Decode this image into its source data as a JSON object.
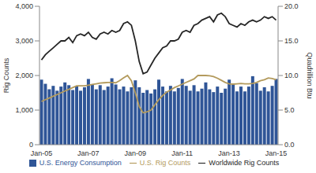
{
  "chart_data": {
    "type": "combo",
    "categories": [
      "Jan-05",
      null,
      null,
      null,
      null,
      null,
      null,
      null,
      null,
      null,
      null,
      null,
      "Jan-07",
      null,
      null,
      null,
      null,
      null,
      null,
      null,
      null,
      null,
      null,
      null,
      "Jan-09",
      null,
      null,
      null,
      null,
      null,
      null,
      null,
      null,
      null,
      null,
      null,
      "Jan-11",
      null,
      null,
      null,
      null,
      null,
      null,
      null,
      null,
      null,
      null,
      null,
      "Jan-13",
      null,
      null,
      null,
      null,
      null,
      null,
      null,
      null,
      null,
      null,
      null,
      "Jan-15"
    ],
    "y_label": "Rig Counts",
    "y2_label": "Quadrillion Btu",
    "ylim": [
      0,
      4000
    ],
    "yticks": [
      0,
      {
        "value": 1000,
        "label": "1,000"
      },
      {
        "value": 2000,
        "label": "2,000"
      },
      {
        "value": 3000,
        "label": "3,000"
      },
      {
        "value": 4000,
        "label": "4,000"
      }
    ],
    "y2lim": [
      0,
      20
    ],
    "y2ticks": [
      {
        "value": 0,
        "label": "0.0"
      },
      {
        "value": 5,
        "label": "5.0"
      },
      {
        "value": 10,
        "label": "10.0"
      },
      {
        "value": 15,
        "label": "15.0"
      },
      {
        "value": 20,
        "label": "20.0"
      }
    ],
    "grid": false,
    "legend": "bottom",
    "series": [
      {
        "name": "U.S. Energy Consumption",
        "type": "bar",
        "axis": "y2",
        "color": "#2f5597",
        "values": [
          9.4,
          8.8,
          8.0,
          8.5,
          7.8,
          8.4,
          9.0,
          8.6,
          7.9,
          8.5,
          7.8,
          8.3,
          9.5,
          8.7,
          8.0,
          8.6,
          7.9,
          8.4,
          9.6,
          8.7,
          8.0,
          8.4,
          7.7,
          8.3,
          9.3,
          8.3,
          7.5,
          7.9,
          7.4,
          8.0,
          9.4,
          8.4,
          7.7,
          8.5,
          7.7,
          8.2,
          9.5,
          8.5,
          7.8,
          8.6,
          7.7,
          8.1,
          9.0,
          8.0,
          7.6,
          8.4,
          7.5,
          8.1,
          9.4,
          8.7,
          7.7,
          8.4,
          7.7,
          8.4,
          9.9,
          8.9,
          7.8,
          8.3,
          7.7,
          8.5,
          9.5
        ]
      },
      {
        "name": "U.S. Rig Counts",
        "type": "line",
        "color": "#b39a5c",
        "values": [
          1250,
          1300,
          1350,
          1400,
          1450,
          1500,
          1550,
          1600,
          1650,
          1700,
          1700,
          1700,
          1720,
          1740,
          1760,
          1780,
          1790,
          1800,
          1800,
          1790,
          1850,
          1930,
          2000,
          1850,
          1500,
          1100,
          920,
          950,
          1000,
          1150,
          1300,
          1420,
          1520,
          1580,
          1650,
          1700,
          1750,
          1800,
          1850,
          1900,
          2000,
          2000,
          2000,
          1990,
          1970,
          1920,
          1860,
          1800,
          1760,
          1750,
          1760,
          1770,
          1760,
          1760,
          1770,
          1800,
          1850,
          1880,
          1930,
          1910,
          1880
        ]
      },
      {
        "name": "Worldwide Rig Counts",
        "type": "line",
        "color": "#262626",
        "values": [
          2450,
          2600,
          2700,
          2800,
          2900,
          3000,
          3000,
          3100,
          2950,
          3150,
          3200,
          3150,
          3250,
          3100,
          3050,
          3200,
          3250,
          3200,
          3300,
          3250,
          3300,
          3500,
          3550,
          3450,
          3000,
          2400,
          2050,
          2100,
          2300,
          2500,
          2650,
          2800,
          2850,
          3000,
          3000,
          3050,
          3250,
          3300,
          3250,
          3450,
          3500,
          3600,
          3650,
          3700,
          3550,
          3750,
          3800,
          3700,
          3500,
          3450,
          3400,
          3500,
          3450,
          3550,
          3600,
          3550,
          3600,
          3700,
          3650,
          3700,
          3600
        ]
      }
    ]
  }
}
